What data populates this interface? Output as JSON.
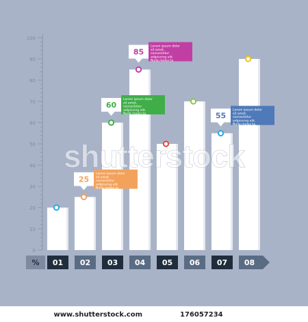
{
  "chart_data": {
    "type": "bar",
    "categories": [
      "01",
      "02",
      "03",
      "04",
      "05",
      "06",
      "07",
      "08"
    ],
    "values": [
      20,
      25,
      60,
      85,
      50,
      70,
      55,
      90
    ],
    "ylim": [
      0,
      100
    ],
    "ytick_labels": [
      "0",
      "10",
      "20",
      "30",
      "40",
      "50",
      "60",
      "70",
      "80",
      "90",
      "100"
    ],
    "unit_label": "%",
    "grid": false,
    "callouts": [
      {
        "category": "02",
        "value_label": "25",
        "text": "Lorem ipsum dolor sit amet, consectetur adipiscing elit. Nulla moles ta euismod lorem eros",
        "color": "#f2a25b",
        "value_color": "#f2a25b"
      },
      {
        "category": "03",
        "value_label": "60",
        "text": "Lorem ipsum dolor sit amet, consectetur adipiscing elit. Nulla moles ta euismod lorem eros",
        "color": "#3fae49",
        "value_color": "#3fae49"
      },
      {
        "category": "04",
        "value_label": "85",
        "text": "Lorem ipsum dolor sit amet, consectetur adipiscing elit. Nulla moles ta euismod lorem eros",
        "color": "#c13fa3",
        "value_color": "#c13fa3"
      },
      {
        "category": "07",
        "value_label": "55",
        "text": "Lorem ipsum dolor sit amet, consectetur adipiscing elit. Nulla moles ta euismod lorem eros",
        "color": "#4f79b8",
        "value_color": "#4f79b8"
      }
    ],
    "dot_colors": [
      "#2aa8df",
      "#f2a25b",
      "#3fae49",
      "#c13fa3",
      "#e0473d",
      "#8cc63f",
      "#2aa8df",
      "#f1c40f"
    ],
    "colors": {
      "background": "#a9b3c8",
      "bar": "#ffffff",
      "axis": "#8f99ad",
      "label_dark": "#1f2d3d",
      "label_mid": "#5a6b84",
      "label_light": "#7e8aa0"
    }
  },
  "watermark": {
    "text": "shutterstock",
    "footer_site": "www.shutterstock.com",
    "footer_id": "176057234"
  }
}
